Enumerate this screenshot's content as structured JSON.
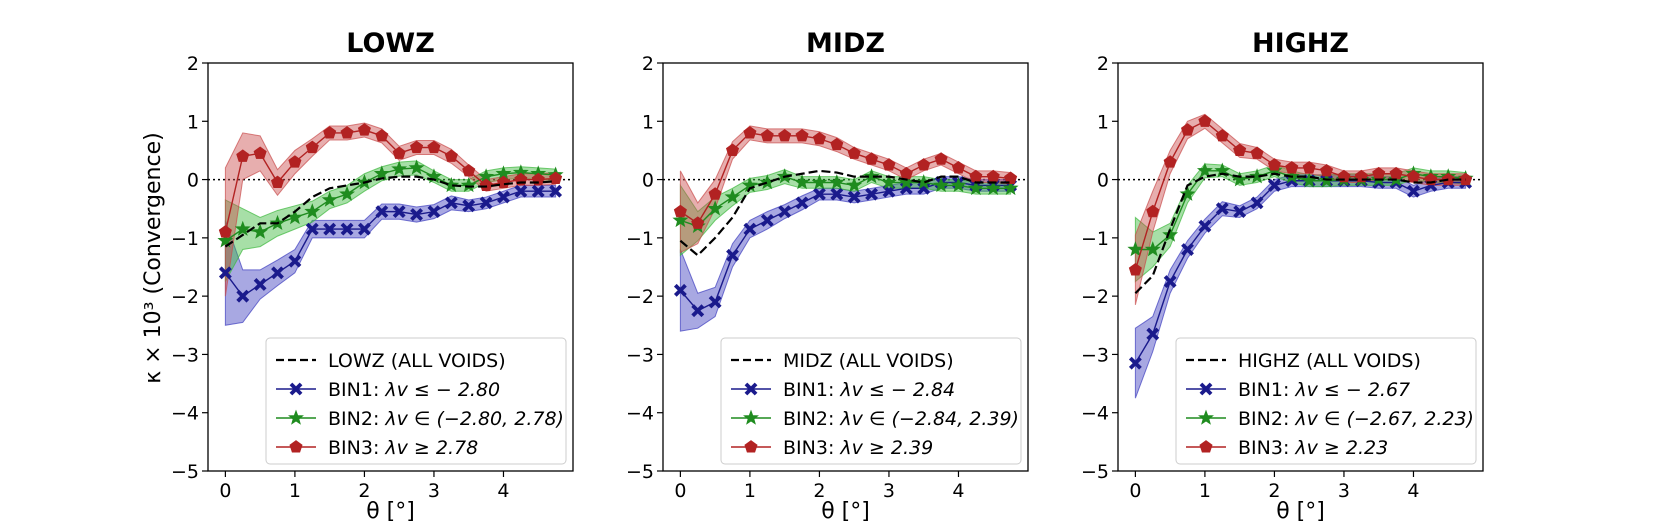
{
  "chart_data": {
    "type": "line",
    "ylabel": "κ × 10³ (Convergence)",
    "xlabel": "θ [°]",
    "xlim": [
      -0.25,
      5.0
    ],
    "ylim": [
      -5,
      2
    ],
    "xticks": [
      "0",
      "1",
      "2",
      "3",
      "4"
    ],
    "yticks": [
      "−5",
      "−4",
      "−3",
      "−2",
      "−1",
      "0",
      "1",
      "2"
    ],
    "colors": {
      "all": "#000000",
      "bin1": "#1a1a8c",
      "bin2": "#1f8c1f",
      "bin3": "#b22222",
      "bin1_band": "#3d3dbf",
      "bin2_band": "#3cb83c",
      "bin3_band": "#c94c4c"
    },
    "x": [
      0.0,
      0.25,
      0.5,
      0.75,
      1.0,
      1.25,
      1.5,
      1.75,
      2.0,
      2.25,
      2.5,
      2.75,
      3.0,
      3.25,
      3.5,
      3.75,
      4.0,
      4.25,
      4.5,
      4.75
    ],
    "panels": [
      {
        "title": "LOWZ",
        "series": [
          {
            "name": "all",
            "label": "LOWZ (ALL VOIDS)",
            "values": [
              -1.15,
              -0.95,
              -0.75,
              -0.75,
              -0.55,
              -0.3,
              -0.15,
              -0.1,
              -0.05,
              0.02,
              0.05,
              0.05,
              0.0,
              -0.1,
              -0.12,
              -0.12,
              -0.08,
              -0.05,
              -0.05,
              -0.03
            ]
          },
          {
            "name": "bin1",
            "label_prefix": "BIN1: ",
            "label_math": "λv ≤ − 2.80",
            "values": [
              -1.6,
              -2.0,
              -1.8,
              -1.6,
              -1.4,
              -0.85,
              -0.85,
              -0.85,
              -0.85,
              -0.55,
              -0.55,
              -0.6,
              -0.55,
              -0.4,
              -0.45,
              -0.4,
              -0.3,
              -0.2,
              -0.2,
              -0.2
            ],
            "err": [
              0.9,
              0.45,
              0.25,
              0.22,
              0.2,
              0.15,
              0.15,
              0.15,
              0.15,
              0.13,
              0.13,
              0.13,
              0.12,
              0.12,
              0.1,
              0.1,
              0.1,
              0.1,
              0.1,
              0.1
            ]
          },
          {
            "name": "bin2",
            "label_prefix": "BIN2: ",
            "label_math": "λv ∈ (−2.80, 2.78)",
            "values": [
              -1.05,
              -0.85,
              -0.9,
              -0.75,
              -0.65,
              -0.55,
              -0.35,
              -0.25,
              -0.05,
              0.1,
              0.18,
              0.2,
              0.05,
              -0.1,
              -0.1,
              0.05,
              0.1,
              0.12,
              0.1,
              0.08
            ],
            "err": [
              0.7,
              0.35,
              0.25,
              0.22,
              0.2,
              0.18,
              0.15,
              0.15,
              0.15,
              0.12,
              0.12,
              0.12,
              0.1,
              0.1,
              0.1,
              0.1,
              0.1,
              0.1,
              0.1,
              0.1
            ]
          },
          {
            "name": "bin3",
            "label_prefix": "BIN3: ",
            "label_math": "λv ≥ 2.78",
            "values": [
              -0.9,
              0.4,
              0.45,
              -0.05,
              0.3,
              0.55,
              0.8,
              0.8,
              0.85,
              0.75,
              0.45,
              0.55,
              0.55,
              0.4,
              0.15,
              -0.1,
              -0.05,
              0.0,
              0.0,
              0.02
            ],
            "err": [
              1.1,
              0.4,
              0.3,
              0.22,
              0.2,
              0.15,
              0.12,
              0.12,
              0.12,
              0.12,
              0.12,
              0.12,
              0.12,
              0.12,
              0.1,
              0.1,
              0.1,
              0.1,
              0.1,
              0.1
            ]
          }
        ]
      },
      {
        "title": "MIDZ",
        "series": [
          {
            "name": "all",
            "label": "MIDZ (ALL VOIDS)",
            "values": [
              -1.05,
              -1.3,
              -1.0,
              -0.65,
              -0.15,
              -0.05,
              0.05,
              0.1,
              0.15,
              0.12,
              0.05,
              0.05,
              0.05,
              0.0,
              -0.05,
              0.05,
              0.05,
              -0.05,
              -0.05,
              -0.05
            ]
          },
          {
            "name": "bin1",
            "label_prefix": "BIN1: ",
            "label_math": "λv ≤ − 2.84",
            "values": [
              -1.9,
              -2.25,
              -2.1,
              -1.3,
              -0.85,
              -0.7,
              -0.55,
              -0.4,
              -0.25,
              -0.25,
              -0.3,
              -0.25,
              -0.2,
              -0.15,
              -0.15,
              -0.05,
              -0.05,
              -0.1,
              -0.1,
              -0.1
            ],
            "err": [
              0.7,
              0.3,
              0.25,
              0.2,
              0.15,
              0.15,
              0.12,
              0.12,
              0.1,
              0.1,
              0.1,
              0.1,
              0.1,
              0.1,
              0.1,
              0.1,
              0.1,
              0.1,
              0.1,
              0.1
            ]
          },
          {
            "name": "bin2",
            "label_prefix": "BIN2: ",
            "label_math": "λv ∈ (−2.84, 2.39)",
            "values": [
              -0.7,
              -0.8,
              -0.5,
              -0.3,
              -0.1,
              -0.05,
              0.05,
              -0.05,
              -0.05,
              -0.05,
              -0.1,
              0.05,
              -0.05,
              -0.05,
              -0.05,
              -0.1,
              -0.1,
              -0.15,
              -0.15,
              -0.15
            ],
            "err": [
              0.6,
              0.25,
              0.2,
              0.15,
              0.12,
              0.12,
              0.12,
              0.1,
              0.1,
              0.1,
              0.1,
              0.1,
              0.1,
              0.1,
              0.1,
              0.1,
              0.1,
              0.1,
              0.1,
              0.1
            ]
          },
          {
            "name": "bin3",
            "label_prefix": "BIN3: ",
            "label_math": "λv ≥ 2.39",
            "values": [
              -0.55,
              -0.75,
              -0.25,
              0.5,
              0.8,
              0.75,
              0.75,
              0.75,
              0.7,
              0.6,
              0.45,
              0.35,
              0.25,
              0.1,
              0.25,
              0.35,
              0.2,
              0.05,
              0.05,
              0.02
            ],
            "err": [
              0.7,
              0.35,
              0.25,
              0.15,
              0.12,
              0.12,
              0.12,
              0.12,
              0.12,
              0.12,
              0.1,
              0.1,
              0.1,
              0.1,
              0.1,
              0.1,
              0.1,
              0.1,
              0.1,
              0.1
            ]
          }
        ]
      },
      {
        "title": "HIGHZ",
        "series": [
          {
            "name": "all",
            "label": "HIGHZ (ALL VOIDS)",
            "values": [
              -1.95,
              -1.65,
              -0.85,
              -0.1,
              0.05,
              0.1,
              0.05,
              0.05,
              0.1,
              0.05,
              0.05,
              0.0,
              0.0,
              0.0,
              0.0,
              0.0,
              -0.05,
              -0.05,
              0.0,
              0.0
            ]
          },
          {
            "name": "bin1",
            "label_prefix": "BIN1: ",
            "label_math": "λv ≤ − 2.67",
            "values": [
              -3.15,
              -2.65,
              -1.75,
              -1.2,
              -0.8,
              -0.5,
              -0.55,
              -0.4,
              -0.1,
              -0.02,
              -0.02,
              -0.02,
              -0.02,
              -0.02,
              -0.05,
              -0.05,
              -0.2,
              -0.1,
              -0.05,
              -0.05
            ],
            "err": [
              0.6,
              0.3,
              0.2,
              0.15,
              0.12,
              0.12,
              0.1,
              0.1,
              0.1,
              0.1,
              0.1,
              0.1,
              0.1,
              0.1,
              0.1,
              0.1,
              0.1,
              0.1,
              0.1,
              0.1
            ]
          },
          {
            "name": "bin2",
            "label_prefix": "BIN2: ",
            "label_math": "λv ∈ (−2.67, 2.23)",
            "values": [
              -1.2,
              -1.2,
              -0.95,
              -0.25,
              0.15,
              0.15,
              0.0,
              0.05,
              0.15,
              0.05,
              -0.02,
              -0.02,
              0.0,
              0.0,
              0.0,
              0.0,
              0.1,
              0.05,
              0.05,
              0.02
            ],
            "err": [
              0.55,
              0.3,
              0.2,
              0.15,
              0.12,
              0.1,
              0.1,
              0.1,
              0.1,
              0.1,
              0.1,
              0.1,
              0.1,
              0.1,
              0.1,
              0.1,
              0.1,
              0.1,
              0.1,
              0.1
            ]
          },
          {
            "name": "bin3",
            "label_prefix": "BIN3: ",
            "label_math": "λv ≥ 2.23",
            "values": [
              -1.55,
              -0.55,
              0.3,
              0.85,
              1.0,
              0.75,
              0.5,
              0.45,
              0.25,
              0.2,
              0.2,
              0.15,
              0.05,
              0.05,
              0.1,
              0.1,
              0.05,
              0.0,
              0.0,
              0.0
            ],
            "err": [
              0.6,
              0.35,
              0.2,
              0.15,
              0.12,
              0.12,
              0.12,
              0.1,
              0.1,
              0.1,
              0.1,
              0.1,
              0.1,
              0.1,
              0.1,
              0.1,
              0.1,
              0.1,
              0.1,
              0.1
            ]
          }
        ]
      }
    ]
  }
}
